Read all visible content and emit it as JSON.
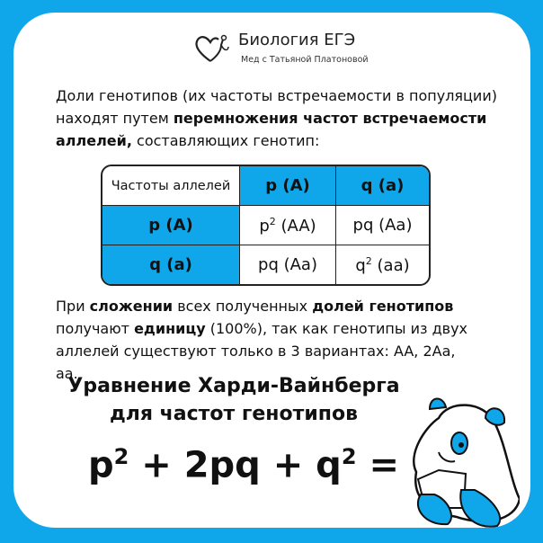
{
  "header": {
    "title": "Биология ЕГЭ",
    "subtitle": "Мед с Татьяной Платоновой",
    "logo_icon": "heart-stethoscope-icon"
  },
  "intro": {
    "part1": "Доли генотипов (их частоты встречаемости в популяции) находят путем ",
    "bold": "перемножения частот встречаемости аллелей,",
    "part2": " составляющих генотип:"
  },
  "table": {
    "corner": "Частоты аллелей",
    "col_headers": [
      "p (A)",
      "q (a)"
    ],
    "rows": [
      {
        "header": "p (A)",
        "cells": [
          {
            "base": "p",
            "sup": "2",
            "rest": " (AA)"
          },
          {
            "base": "pq (Aa)",
            "sup": "",
            "rest": ""
          }
        ]
      },
      {
        "header": "q (a)",
        "cells": [
          {
            "base": "pq (Aa)",
            "sup": "",
            "rest": ""
          },
          {
            "base": "q",
            "sup": "2",
            "rest": " (aa)"
          }
        ]
      }
    ]
  },
  "summary": {
    "t1": "При ",
    "b1": "сложении",
    "t2": " всех полученных ",
    "b2": "долей генотипов",
    "t3": " получают ",
    "b3": "единицу",
    "t4": " (100%), так как генотипы из двух аллелей существуют только в 3 вариантах: AA, 2Aa, aa."
  },
  "heading": {
    "line1": "Уравнение Харди-Вайнберга",
    "line2": "для частот генотипов"
  },
  "formula": {
    "p": "p",
    "p_sup": "2",
    "mid": " + 2pq + q",
    "q_sup": "2",
    "end": " = 1"
  },
  "colors": {
    "accent": "#0fa6ea"
  },
  "illustration": "panda-reading-book"
}
